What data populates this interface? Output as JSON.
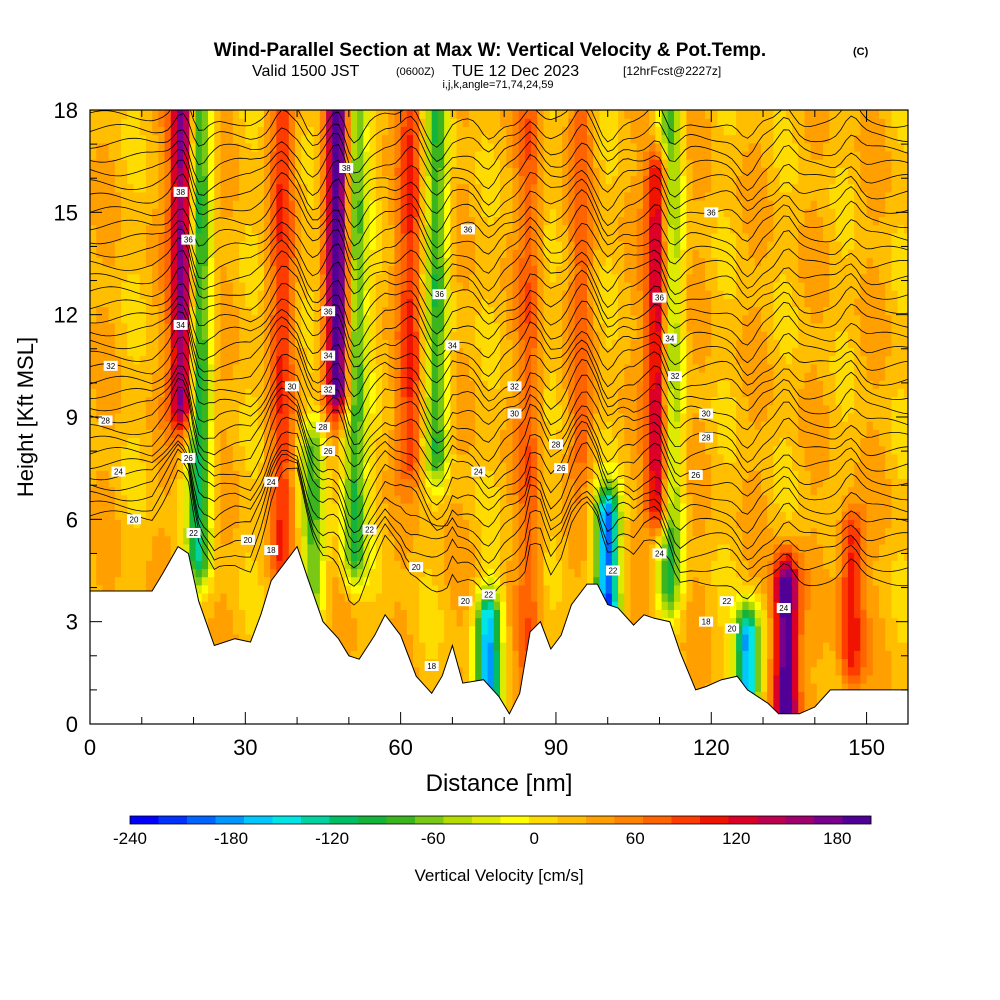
{
  "chart_data": {
    "type": "heatmap",
    "title": "Wind-Parallel Section at Max W: Vertical Velocity & Pot.Temp.",
    "title_mark": "(C)",
    "subtitle_prefix": "Valid 1500 JST",
    "subtitle_utc": "(0600Z)",
    "subtitle_date": "TUE 12 Dec 2023",
    "subtitle_run": "[12hrFcst@2227z]",
    "subtitle_indices": "i,j,k,angle=71,74,24,59",
    "xlabel": "Distance [nm]",
    "ylabel": "Height [Kft MSL]",
    "xlim": [
      0,
      158
    ],
    "ylim": [
      0,
      18
    ],
    "x_ticks": [
      0,
      30,
      60,
      90,
      120,
      150
    ],
    "y_ticks": [
      0,
      3,
      6,
      9,
      12,
      15,
      18
    ],
    "colorbar": {
      "label": "Vertical Velocity [cm/s]",
      "range": [
        -240,
        200
      ],
      "ticks": [
        -240,
        -180,
        -120,
        -60,
        0,
        60,
        120,
        180
      ],
      "colors": [
        "#0000ff",
        "#0032ff",
        "#0064ff",
        "#0096ff",
        "#00c8ff",
        "#00e6e6",
        "#00d2a0",
        "#00be64",
        "#14b43c",
        "#3cb41e",
        "#78c814",
        "#b4dc00",
        "#dceb00",
        "#ffff00",
        "#ffdc00",
        "#ffbe00",
        "#ffa000",
        "#ff8200",
        "#ff6400",
        "#ff3c00",
        "#f01400",
        "#dc0028",
        "#be0050",
        "#a0006e",
        "#78008c",
        "#500096"
      ]
    },
    "terrain_kft": [
      [
        0,
        3.9
      ],
      [
        12,
        3.9
      ],
      [
        14,
        4.4
      ],
      [
        17,
        5.2
      ],
      [
        19,
        5.0
      ],
      [
        21,
        3.6
      ],
      [
        24,
        2.3
      ],
      [
        28,
        2.5
      ],
      [
        31,
        2.4
      ],
      [
        33,
        3.2
      ],
      [
        35,
        4.2
      ],
      [
        38,
        4.8
      ],
      [
        40,
        5.2
      ],
      [
        42,
        4.3
      ],
      [
        45,
        3.0
      ],
      [
        48,
        2.5
      ],
      [
        50,
        2.0
      ],
      [
        52,
        1.9
      ],
      [
        55,
        2.6
      ],
      [
        57,
        3.2
      ],
      [
        60,
        2.6
      ],
      [
        63,
        1.4
      ],
      [
        66,
        0.9
      ],
      [
        68,
        1.4
      ],
      [
        70,
        2.3
      ],
      [
        72,
        1.2
      ],
      [
        76,
        1.3
      ],
      [
        79,
        0.8
      ],
      [
        81,
        0.3
      ],
      [
        83,
        0.9
      ],
      [
        85,
        2.7
      ],
      [
        87,
        3.0
      ],
      [
        89,
        2.2
      ],
      [
        91,
        2.6
      ],
      [
        93,
        3.5
      ],
      [
        96,
        4.1
      ],
      [
        98,
        4.1
      ],
      [
        100,
        3.5
      ],
      [
        102,
        3.4
      ],
      [
        105,
        2.9
      ],
      [
        107,
        3.2
      ],
      [
        109,
        3.1
      ],
      [
        112,
        3.0
      ],
      [
        114,
        2.1
      ],
      [
        117,
        1.0
      ],
      [
        119,
        1.1
      ],
      [
        122,
        1.3
      ],
      [
        125,
        1.4
      ],
      [
        127,
        1.0
      ],
      [
        129,
        0.8
      ],
      [
        131,
        0.6
      ],
      [
        133,
        0.3
      ],
      [
        137,
        0.3
      ],
      [
        140,
        0.5
      ],
      [
        143,
        1.0
      ],
      [
        147,
        1.0
      ],
      [
        150,
        1.0
      ],
      [
        158,
        1.0
      ]
    ],
    "updraft_cores": [
      {
        "x": 18,
        "w": 170,
        "zmin": 9.5,
        "zmax": 18
      },
      {
        "x": 48,
        "w": 190,
        "zmin": 10,
        "zmax": 18
      },
      {
        "x": 110,
        "w": 150,
        "zmin": 6.5,
        "zmax": 16
      },
      {
        "x": 134.5,
        "w": 190,
        "zmin": 0.5,
        "zmax": 4
      },
      {
        "x": 147,
        "w": 90,
        "zmin": 2,
        "zmax": 5.5
      },
      {
        "x": 62,
        "w": 70,
        "zmin": 8,
        "zmax": 18
      },
      {
        "x": 37,
        "w": 60,
        "zmin": 5,
        "zmax": 18
      },
      {
        "x": 85,
        "w": 45,
        "zmin": 1,
        "zmax": 18
      },
      {
        "x": 95,
        "w": 40,
        "zmin": 8,
        "zmax": 18
      }
    ],
    "downdraft_cores": [
      {
        "x": 77,
        "w": -190,
        "zmin": 1,
        "zmax": 3
      },
      {
        "x": 100,
        "w": -220,
        "zmin": 3.5,
        "zmax": 6
      },
      {
        "x": 127,
        "w": -210,
        "zmin": 1,
        "zmax": 2.5
      },
      {
        "x": 21,
        "w": -130,
        "zmin": 5,
        "zmax": 18
      },
      {
        "x": 51,
        "w": -120,
        "zmin": 5,
        "zmax": 18
      },
      {
        "x": 67,
        "w": -100,
        "zmin": 8,
        "zmax": 18
      },
      {
        "x": 112,
        "w": -110,
        "zmin": 4,
        "zmax": 18
      },
      {
        "x": 43,
        "w": -90,
        "zmin": 4,
        "zmax": 8
      }
    ],
    "contour_labels": [
      {
        "text": "38",
        "x": 17.5,
        "y": 15.6
      },
      {
        "text": "36",
        "x": 19,
        "y": 14.2
      },
      {
        "text": "34",
        "x": 17.5,
        "y": 11.7
      },
      {
        "text": "32",
        "x": 4,
        "y": 10.5
      },
      {
        "text": "28",
        "x": 3,
        "y": 8.9
      },
      {
        "text": "24",
        "x": 5.5,
        "y": 7.4
      },
      {
        "text": "20",
        "x": 8.5,
        "y": 6.0
      },
      {
        "text": "26",
        "x": 19,
        "y": 7.8
      },
      {
        "text": "22",
        "x": 20,
        "y": 5.6
      },
      {
        "text": "20",
        "x": 30.5,
        "y": 5.4
      },
      {
        "text": "18",
        "x": 35,
        "y": 5.1
      },
      {
        "text": "24",
        "x": 35,
        "y": 7.1
      },
      {
        "text": "30",
        "x": 39,
        "y": 9.9
      },
      {
        "text": "28",
        "x": 45,
        "y": 8.7
      },
      {
        "text": "26",
        "x": 46,
        "y": 8.0
      },
      {
        "text": "38",
        "x": 49.5,
        "y": 16.3
      },
      {
        "text": "36",
        "x": 46,
        "y": 12.1
      },
      {
        "text": "34",
        "x": 46,
        "y": 10.8
      },
      {
        "text": "32",
        "x": 46,
        "y": 9.8
      },
      {
        "text": "22",
        "x": 54,
        "y": 5.7
      },
      {
        "text": "20",
        "x": 63,
        "y": 4.6
      },
      {
        "text": "18",
        "x": 66,
        "y": 1.7
      },
      {
        "text": "36",
        "x": 73,
        "y": 14.5
      },
      {
        "text": "36",
        "x": 67.5,
        "y": 12.6
      },
      {
        "text": "34",
        "x": 70,
        "y": 11.1
      },
      {
        "text": "32",
        "x": 82,
        "y": 9.9
      },
      {
        "text": "30",
        "x": 82,
        "y": 9.1
      },
      {
        "text": "24",
        "x": 75,
        "y": 7.4
      },
      {
        "text": "20",
        "x": 72.5,
        "y": 3.6
      },
      {
        "text": "22",
        "x": 77,
        "y": 3.8
      },
      {
        "text": "28",
        "x": 90,
        "y": 8.2
      },
      {
        "text": "26",
        "x": 91,
        "y": 7.5
      },
      {
        "text": "22",
        "x": 101,
        "y": 4.5
      },
      {
        "text": "36",
        "x": 120,
        "y": 15.0
      },
      {
        "text": "36",
        "x": 110,
        "y": 12.5
      },
      {
        "text": "34",
        "x": 112,
        "y": 11.3
      },
      {
        "text": "32",
        "x": 113,
        "y": 10.2
      },
      {
        "text": "30",
        "x": 119,
        "y": 9.1
      },
      {
        "text": "28",
        "x": 119,
        "y": 8.4
      },
      {
        "text": "26",
        "x": 117,
        "y": 7.3
      },
      {
        "text": "24",
        "x": 110,
        "y": 5.0
      },
      {
        "text": "22",
        "x": 123,
        "y": 3.6
      },
      {
        "text": "20",
        "x": 124,
        "y": 2.8
      },
      {
        "text": "18",
        "x": 119,
        "y": 3.0
      },
      {
        "text": "24",
        "x": 134,
        "y": 3.4
      }
    ]
  }
}
